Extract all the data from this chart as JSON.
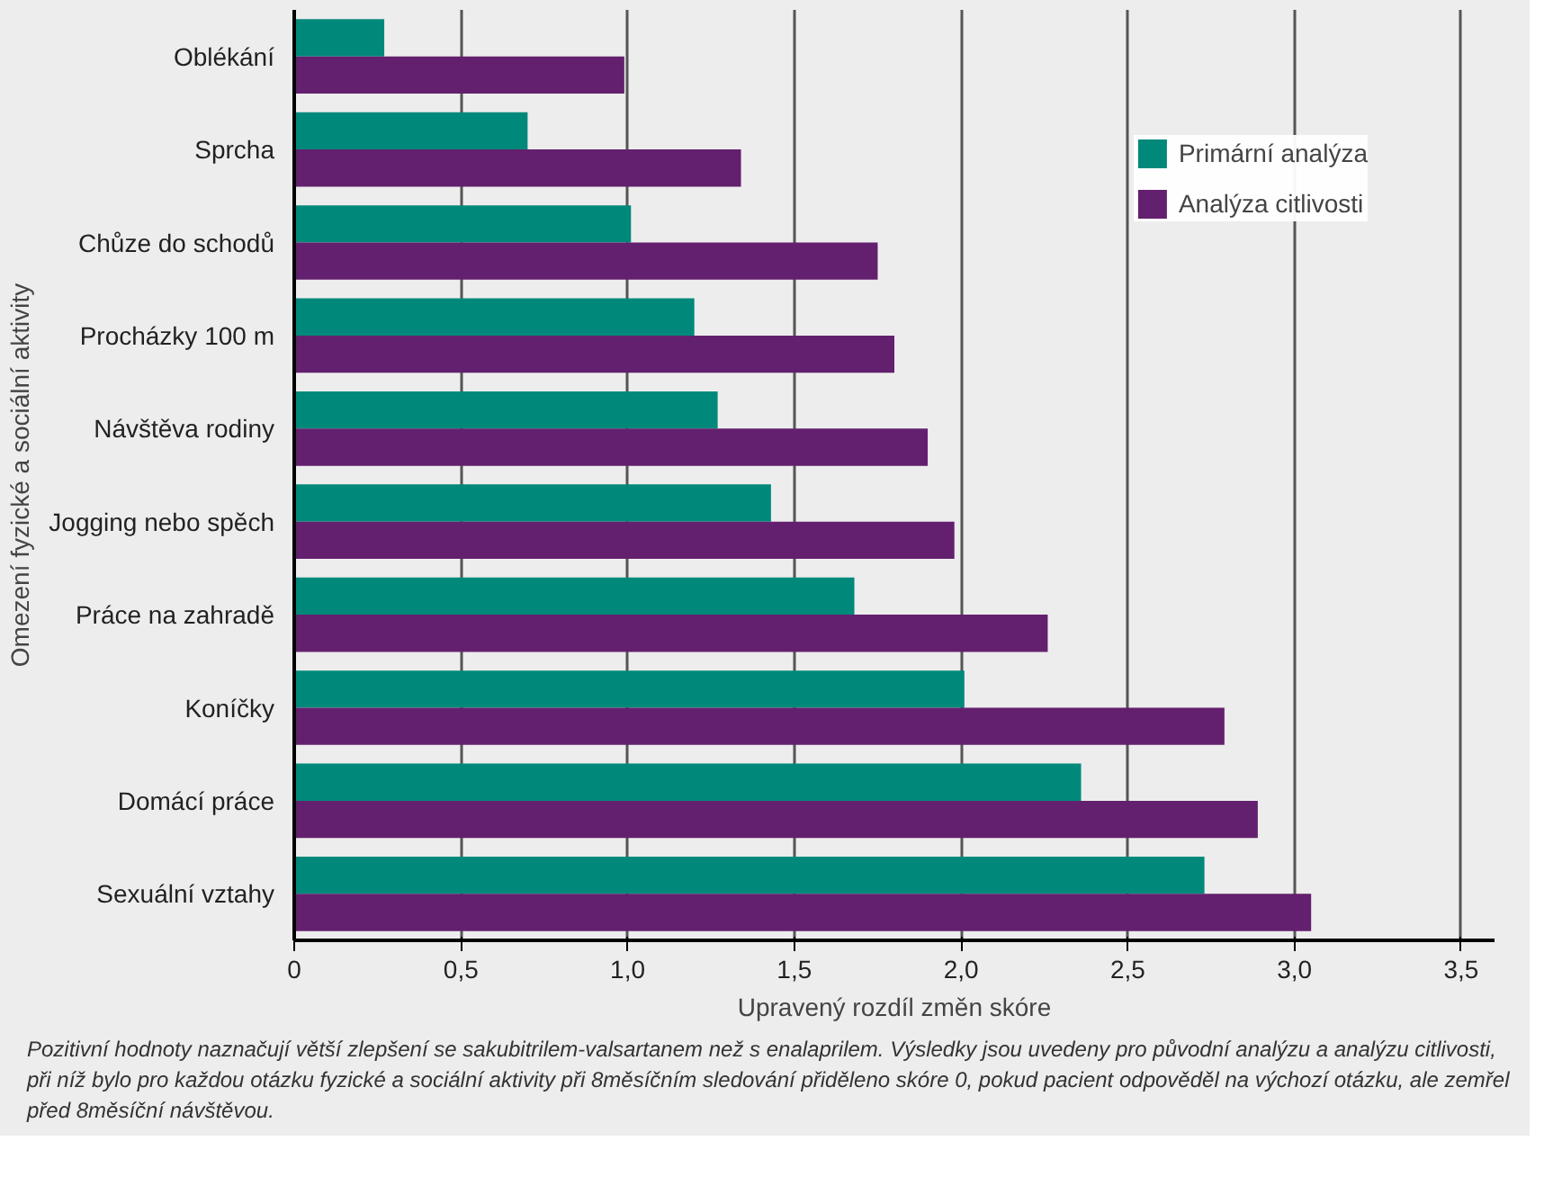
{
  "chart_data": {
    "type": "bar",
    "orientation": "horizontal",
    "xlabel": "Upravený rozdíl změn skóre",
    "ylabel": "Omezení fyzické a sociální aktivity",
    "categories": [
      "Oblékání",
      "Sprcha",
      "Chůze do schodů",
      "Procházky 100 m",
      "Návštěva rodiny",
      "Jogging nebo spěch",
      "Práce na zahradě",
      "Koníčky",
      "Domácí práce",
      "Sexuální vztahy"
    ],
    "series": [
      {
        "name": "Primární analýza",
        "color": "#00897b",
        "values": [
          0.27,
          0.7,
          1.01,
          1.2,
          1.27,
          1.43,
          1.68,
          2.01,
          2.36,
          2.73
        ]
      },
      {
        "name": "Analýza citlivosti",
        "color": "#63206e",
        "values": [
          0.99,
          1.34,
          1.75,
          1.8,
          1.9,
          1.98,
          2.26,
          2.79,
          2.89,
          3.05
        ]
      }
    ],
    "xlim": [
      0,
      3.6
    ],
    "xticks": [
      0,
      {
        "value": 0.5,
        "label": "0,5"
      },
      {
        "value": 1.0,
        "label": "1,0"
      },
      {
        "value": 1.5,
        "label": "1,5"
      },
      {
        "value": 2.0,
        "label": "2,0"
      },
      {
        "value": 2.5,
        "label": "2,5"
      },
      {
        "value": 3.0,
        "label": "3,0"
      },
      {
        "value": 3.5,
        "label": "3,5"
      }
    ],
    "grid": "x",
    "legend": "top right",
    "annotations": [
      "Pozitivní hodnoty naznačují větší zlepšení se sakubitrilem-valsartanem než s enalaprilem. Výsledky jsou uvedeny pro původní analýzu a analýzu citlivosti, při níž bylo pro každou otázku fyzické a sociální aktivity při 8měsíčním sledování přiděleno skóre 0, pokud pacient odpověděl na výchozí otázku, ale zemřel před 8měsíční návštěvou."
    ]
  }
}
